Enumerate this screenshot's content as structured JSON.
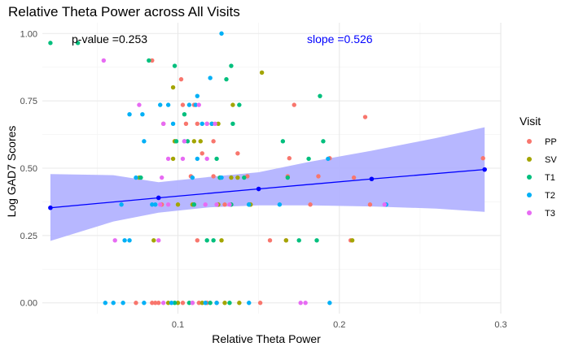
{
  "chart_data": {
    "type": "scatter",
    "title": "Relative Theta Power across All Visits",
    "xlabel": "Relative Theta Power",
    "ylabel": "Log GAD7 Scores",
    "xlim": [
      0.016,
      0.3
    ],
    "ylim": [
      -0.04,
      1.04
    ],
    "x_ticks": [
      0.1,
      0.2,
      0.3
    ],
    "x_tick_labels": [
      "0.1",
      "0.2",
      "0.3"
    ],
    "y_ticks": [
      0.0,
      0.25,
      0.5,
      0.75,
      1.0
    ],
    "y_tick_labels": [
      "0.00",
      "0.25",
      "0.50",
      "0.75",
      "1.00"
    ],
    "grid": true,
    "legend": {
      "title": "Visit",
      "position": "right",
      "entries": [
        {
          "label": "PP",
          "color": "#F8766D"
        },
        {
          "label": "SV",
          "color": "#A3A500"
        },
        {
          "label": "T1",
          "color": "#00BF7D"
        },
        {
          "label": "T2",
          "color": "#00B0F6"
        },
        {
          "label": "T3",
          "color": "#E76BF3"
        }
      ]
    },
    "annotations": {
      "p_value": "p-value =0.253",
      "slope": "slope =0.526",
      "p_value_color": "#000000",
      "slope_color": "#0000FF"
    },
    "trend": {
      "color": "#0000FF",
      "band_color": "#B3B3FF",
      "points": [
        {
          "x": 0.021,
          "y": 0.353
        },
        {
          "x": 0.088,
          "y": 0.39
        },
        {
          "x": 0.15,
          "y": 0.423
        },
        {
          "x": 0.22,
          "y": 0.46
        },
        {
          "x": 0.29,
          "y": 0.495
        }
      ],
      "band_lower": [
        {
          "x": 0.021,
          "y": 0.23
        },
        {
          "x": 0.06,
          "y": 0.302
        },
        {
          "x": 0.088,
          "y": 0.335
        },
        {
          "x": 0.12,
          "y": 0.355
        },
        {
          "x": 0.15,
          "y": 0.362
        },
        {
          "x": 0.18,
          "y": 0.362
        },
        {
          "x": 0.22,
          "y": 0.358
        },
        {
          "x": 0.26,
          "y": 0.35
        },
        {
          "x": 0.29,
          "y": 0.338
        }
      ],
      "band_upper": [
        {
          "x": 0.021,
          "y": 0.478
        },
        {
          "x": 0.06,
          "y": 0.474
        },
        {
          "x": 0.088,
          "y": 0.448
        },
        {
          "x": 0.12,
          "y": 0.468
        },
        {
          "x": 0.15,
          "y": 0.485
        },
        {
          "x": 0.18,
          "y": 0.522
        },
        {
          "x": 0.22,
          "y": 0.565
        },
        {
          "x": 0.26,
          "y": 0.612
        },
        {
          "x": 0.29,
          "y": 0.652
        }
      ]
    },
    "series": [
      {
        "name": "PP",
        "points": [
          [
            0.084,
            0.9
          ],
          [
            0.102,
            0.83
          ],
          [
            0.216,
            0.69
          ],
          [
            0.103,
            0.735
          ],
          [
            0.11,
            0.735
          ],
          [
            0.172,
            0.735
          ],
          [
            0.112,
            0.665
          ],
          [
            0.091,
            0.665
          ],
          [
            0.105,
            0.665
          ],
          [
            0.118,
            0.665
          ],
          [
            0.098,
            0.6
          ],
          [
            0.122,
            0.6
          ],
          [
            0.115,
            0.555
          ],
          [
            0.137,
            0.555
          ],
          [
            0.289,
            0.537
          ],
          [
            0.169,
            0.537
          ],
          [
            0.194,
            0.537
          ],
          [
            0.122,
            0.47
          ],
          [
            0.143,
            0.47
          ],
          [
            0.168,
            0.47
          ],
          [
            0.187,
            0.47
          ],
          [
            0.108,
            0.47
          ],
          [
            0.209,
            0.465
          ],
          [
            0.09,
            0.365
          ],
          [
            0.11,
            0.365
          ],
          [
            0.182,
            0.365
          ],
          [
            0.145,
            0.365
          ],
          [
            0.129,
            0.365
          ],
          [
            0.219,
            0.365
          ],
          [
            0.112,
            0.232
          ],
          [
            0.157,
            0.232
          ],
          [
            0.167,
            0.232
          ],
          [
            0.207,
            0.232
          ],
          [
            0.113,
            0.0
          ],
          [
            0.084,
            0.0
          ],
          [
            0.086,
            0.0
          ],
          [
            0.088,
            0.0
          ],
          [
            0.103,
            0.0
          ],
          [
            0.109,
            0.0
          ],
          [
            0.118,
            0.0
          ],
          [
            0.124,
            0.0
          ],
          [
            0.151,
            0.0
          ],
          [
            0.074,
            0.0
          ]
        ]
      },
      {
        "name": "SV",
        "points": [
          [
            0.152,
            0.855
          ],
          [
            0.097,
            0.8
          ],
          [
            0.134,
            0.735
          ],
          [
            0.121,
            0.665
          ],
          [
            0.125,
            0.665
          ],
          [
            0.11,
            0.6
          ],
          [
            0.098,
            0.6
          ],
          [
            0.114,
            0.6
          ],
          [
            0.097,
            0.535
          ],
          [
            0.126,
            0.465
          ],
          [
            0.133,
            0.465
          ],
          [
            0.076,
            0.465
          ],
          [
            0.137,
            0.465
          ],
          [
            0.1,
            0.365
          ],
          [
            0.145,
            0.365
          ],
          [
            0.109,
            0.365
          ],
          [
            0.125,
            0.365
          ],
          [
            0.208,
            0.232
          ],
          [
            0.127,
            0.232
          ],
          [
            0.085,
            0.232
          ],
          [
            0.167,
            0.232
          ],
          [
            0.1,
            0.0
          ],
          [
            0.094,
            0.0
          ],
          [
            0.138,
            0.0
          ],
          [
            0.129,
            0.0
          ],
          [
            0.115,
            0.0
          ]
        ]
      },
      {
        "name": "T1",
        "points": [
          [
            0.021,
            0.965
          ],
          [
            0.038,
            0.965
          ],
          [
            0.082,
            0.9
          ],
          [
            0.098,
            0.88
          ],
          [
            0.133,
            0.88
          ],
          [
            0.13,
            0.83
          ],
          [
            0.188,
            0.768
          ],
          [
            0.138,
            0.735
          ],
          [
            0.104,
            0.7
          ],
          [
            0.134,
            0.665
          ],
          [
            0.106,
            0.6
          ],
          [
            0.165,
            0.6
          ],
          [
            0.19,
            0.6
          ],
          [
            0.099,
            0.6
          ],
          [
            0.124,
            0.535
          ],
          [
            0.181,
            0.535
          ],
          [
            0.168,
            0.465
          ],
          [
            0.126,
            0.465
          ],
          [
            0.141,
            0.465
          ],
          [
            0.077,
            0.465
          ],
          [
            0.11,
            0.365
          ],
          [
            0.144,
            0.365
          ],
          [
            0.133,
            0.365
          ],
          [
            0.175,
            0.232
          ],
          [
            0.186,
            0.232
          ],
          [
            0.118,
            0.232
          ],
          [
            0.122,
            0.232
          ],
          [
            0.132,
            0.0
          ],
          [
            0.12,
            0.0
          ],
          [
            0.107,
            0.0
          ],
          [
            0.098,
            0.0
          ]
        ]
      },
      {
        "name": "T2",
        "points": [
          [
            0.127,
            1.0
          ],
          [
            0.12,
            0.835
          ],
          [
            0.112,
            0.768
          ],
          [
            0.107,
            0.735
          ],
          [
            0.111,
            0.735
          ],
          [
            0.089,
            0.735
          ],
          [
            0.094,
            0.735
          ],
          [
            0.078,
            0.7
          ],
          [
            0.07,
            0.7
          ],
          [
            0.097,
            0.665
          ],
          [
            0.115,
            0.665
          ],
          [
            0.121,
            0.665
          ],
          [
            0.104,
            0.6
          ],
          [
            0.079,
            0.6
          ],
          [
            0.112,
            0.535
          ],
          [
            0.193,
            0.535
          ],
          [
            0.074,
            0.465
          ],
          [
            0.109,
            0.465
          ],
          [
            0.127,
            0.465
          ],
          [
            0.086,
            0.365
          ],
          [
            0.163,
            0.365
          ],
          [
            0.229,
            0.365
          ],
          [
            0.065,
            0.365
          ],
          [
            0.084,
            0.365
          ],
          [
            0.144,
            0.365
          ],
          [
            0.067,
            0.232
          ],
          [
            0.07,
            0.232
          ],
          [
            0.055,
            0.0
          ],
          [
            0.06,
            0.0
          ],
          [
            0.066,
            0.0
          ],
          [
            0.096,
            0.0
          ],
          [
            0.117,
            0.0
          ],
          [
            0.124,
            0.0
          ],
          [
            0.144,
            0.0
          ],
          [
            0.194,
            0.0
          ],
          [
            0.079,
            0.0
          ]
        ]
      },
      {
        "name": "T3",
        "points": [
          [
            0.054,
            0.9
          ],
          [
            0.076,
            0.735
          ],
          [
            0.113,
            0.735
          ],
          [
            0.091,
            0.665
          ],
          [
            0.118,
            0.665
          ],
          [
            0.123,
            0.665
          ],
          [
            0.104,
            0.6
          ],
          [
            0.103,
            0.535
          ],
          [
            0.094,
            0.535
          ],
          [
            0.118,
            0.535
          ],
          [
            0.09,
            0.465
          ],
          [
            0.228,
            0.365
          ],
          [
            0.089,
            0.365
          ],
          [
            0.094,
            0.365
          ],
          [
            0.124,
            0.365
          ],
          [
            0.132,
            0.365
          ],
          [
            0.117,
            0.365
          ],
          [
            0.061,
            0.232
          ],
          [
            0.088,
            0.232
          ],
          [
            0.176,
            0.0
          ],
          [
            0.179,
            0.0
          ],
          [
            0.109,
            0.0
          ],
          [
            0.091,
            0.0
          ]
        ]
      }
    ]
  }
}
